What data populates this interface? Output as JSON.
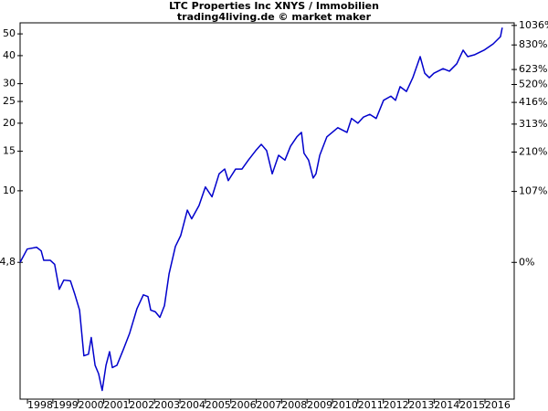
{
  "chart_data": {
    "type": "line",
    "title": "LTC Properties Inc XNYS / Immobilien",
    "subtitle": "trading4living.de © market maker",
    "log_scale": true,
    "y2_scale": "log-change",
    "grid": false,
    "xlim": [
      1997.71,
      2017.15
    ],
    "xticks": [
      {
        "value": 1998,
        "label": "1998"
      },
      {
        "value": 1999,
        "label": "1999"
      },
      {
        "value": 2000,
        "label": "2000"
      },
      {
        "value": 2001,
        "label": "2001"
      },
      {
        "value": 2002,
        "label": "2002"
      },
      {
        "value": 2003,
        "label": "2003"
      },
      {
        "value": 2004,
        "label": "2004"
      },
      {
        "value": 2005,
        "label": "2005"
      },
      {
        "value": 2006,
        "label": "2006"
      },
      {
        "value": 2007,
        "label": "2007"
      },
      {
        "value": 2008,
        "label": "2008"
      },
      {
        "value": 2009,
        "label": "2009"
      },
      {
        "value": 2010,
        "label": "2010"
      },
      {
        "value": 2011,
        "label": "2011"
      },
      {
        "value": 2012,
        "label": "2012"
      },
      {
        "value": 2013,
        "label": "2013"
      },
      {
        "value": 2014,
        "label": "2014"
      },
      {
        "value": 2015,
        "label": "2015"
      },
      {
        "value": 2016,
        "label": "2016"
      }
    ],
    "ylim": [
      1.18,
      56
    ],
    "yticks": [
      {
        "value": 4.8,
        "label": "4,8"
      },
      10,
      15,
      20,
      25,
      30,
      40,
      50
    ],
    "y2lim": [
      -75.4,
      1066.7
    ],
    "y2ticks": [
      {
        "value": 0,
        "label": "0%"
      },
      {
        "value": 107,
        "label": "107%"
      },
      {
        "value": 210,
        "label": "210%"
      },
      {
        "value": 313,
        "label": "313%"
      },
      {
        "value": 416,
        "label": "416%"
      },
      {
        "value": 520,
        "label": "520%"
      },
      {
        "value": 623,
        "label": "623%"
      },
      {
        "value": 830,
        "label": "830%"
      },
      {
        "value": 1036,
        "label": "1036%"
      }
    ],
    "x": [
      1997.71,
      1997.99,
      1998.36,
      1998.54,
      1998.64,
      1998.9,
      1999.07,
      1999.25,
      1999.43,
      1999.69,
      1999.87,
      2000.05,
      2000.22,
      2000.4,
      2000.51,
      2000.66,
      2000.8,
      2000.94,
      2001.09,
      2001.23,
      2001.34,
      2001.52,
      2001.77,
      2002.02,
      2002.31,
      2002.56,
      2002.74,
      2002.85,
      2003.03,
      2003.21,
      2003.39,
      2003.57,
      2003.82,
      2004.03,
      2004.29,
      2004.46,
      2004.75,
      2005.0,
      2005.26,
      2005.54,
      2005.76,
      2005.9,
      2006.19,
      2006.44,
      2006.69,
      2006.98,
      2007.2,
      2007.41,
      2007.63,
      2007.88,
      2008.13,
      2008.35,
      2008.6,
      2008.78,
      2008.88,
      2009.06,
      2009.24,
      2009.35,
      2009.5,
      2009.78,
      2010.21,
      2010.57,
      2010.75,
      2011.0,
      2011.22,
      2011.47,
      2011.72,
      2012.01,
      2012.3,
      2012.48,
      2012.66,
      2012.91,
      2013.16,
      2013.45,
      2013.63,
      2013.81,
      2013.99,
      2014.35,
      2014.6,
      2014.89,
      2015.14,
      2015.32,
      2015.6,
      2015.96,
      2016.32,
      2016.61,
      2016.68
    ],
    "series": [
      {
        "name": "LTC Properties Inc",
        "color": "#0000cc",
        "values": [
          4.8,
          5.5,
          5.6,
          5.4,
          4.9,
          4.9,
          4.7,
          3.64,
          4.0,
          3.97,
          3.44,
          2.94,
          1.84,
          1.87,
          2.22,
          1.67,
          1.53,
          1.29,
          1.67,
          1.92,
          1.63,
          1.67,
          1.96,
          2.32,
          2.99,
          3.44,
          3.38,
          2.94,
          2.89,
          2.73,
          3.08,
          4.26,
          5.65,
          6.32,
          8.2,
          7.5,
          8.6,
          10.4,
          9.4,
          11.9,
          12.5,
          11.1,
          12.5,
          12.5,
          13.7,
          15.1,
          16.1,
          15.1,
          11.9,
          14.4,
          13.7,
          15.8,
          17.4,
          18.2,
          14.7,
          13.7,
          11.4,
          11.9,
          14.4,
          17.4,
          19.1,
          18.2,
          21.0,
          20.0,
          21.3,
          21.9,
          21.0,
          25.3,
          26.4,
          25.3,
          29.1,
          27.7,
          31.9,
          39.6,
          33.4,
          31.9,
          33.4,
          35.0,
          34.1,
          36.8,
          42.3,
          39.6,
          40.4,
          42.3,
          45.1,
          48.6,
          53.3
        ]
      }
    ]
  }
}
